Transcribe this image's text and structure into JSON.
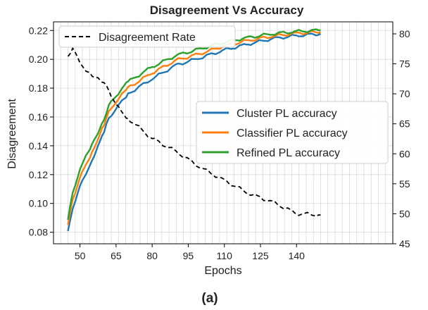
{
  "chart_data": {
    "type": "line",
    "title": "Disagreement Vs Accuracy",
    "xlabel": "Epochs",
    "ylabel": "Disagreement",
    "y2label": "",
    "panel_label": "(a)",
    "xlim": [
      39,
      180
    ],
    "ylim": [
      0.072,
      0.226
    ],
    "y2lim": [
      45,
      82
    ],
    "xticks": [
      50,
      65,
      80,
      95,
      110,
      125,
      140
    ],
    "yticks": [
      0.08,
      0.1,
      0.12,
      0.14,
      0.16,
      0.18,
      0.2,
      0.22
    ],
    "y2ticks": [
      45,
      50,
      55,
      60,
      65,
      70,
      75,
      80
    ],
    "grid": true,
    "legend_top_left": {
      "placement": "upper-left",
      "entries": [
        "Disagreement Rate"
      ]
    },
    "legend_right": {
      "placement": "center-right",
      "entries": [
        "Cluster PL accuracy",
        "Classifier PL accuracy",
        "Refined PL accuracy"
      ]
    },
    "x": [
      45,
      47,
      50,
      55,
      60,
      62,
      65,
      70,
      80,
      90,
      100,
      110,
      120,
      130,
      140,
      150
    ],
    "series": [
      {
        "name": "Disagreement Rate",
        "axis": "left",
        "style": "dashed",
        "color": "#000000",
        "values": [
          0.202,
          0.208,
          0.197,
          0.189,
          0.183,
          0.179,
          0.168,
          0.159,
          0.145,
          0.136,
          0.125,
          0.116,
          0.107,
          0.101,
          0.093,
          0.092
        ]
      },
      {
        "name": "Cluster PL accuracy",
        "axis": "right",
        "style": "solid",
        "color": "#1f77b4",
        "values": [
          47.0,
          51.0,
          54.5,
          59.0,
          63.5,
          66.0,
          67.5,
          70.0,
          72.5,
          74.8,
          76.0,
          77.3,
          78.3,
          79.2,
          79.7,
          80.0
        ]
      },
      {
        "name": "Classifier PL accuracy",
        "axis": "right",
        "style": "solid",
        "color": "#ff7f0e",
        "values": [
          48.0,
          52.5,
          56.0,
          60.3,
          64.8,
          67.0,
          68.7,
          71.0,
          73.5,
          75.6,
          76.7,
          78.0,
          78.9,
          79.6,
          80.1,
          80.3
        ]
      },
      {
        "name": "Refined PL accuracy",
        "axis": "right",
        "style": "solid",
        "color": "#2ca02c",
        "values": [
          49.0,
          53.5,
          57.5,
          61.5,
          65.8,
          68.0,
          69.7,
          72.0,
          74.5,
          76.4,
          77.5,
          78.6,
          79.4,
          80.0,
          80.4,
          80.6
        ]
      }
    ]
  }
}
